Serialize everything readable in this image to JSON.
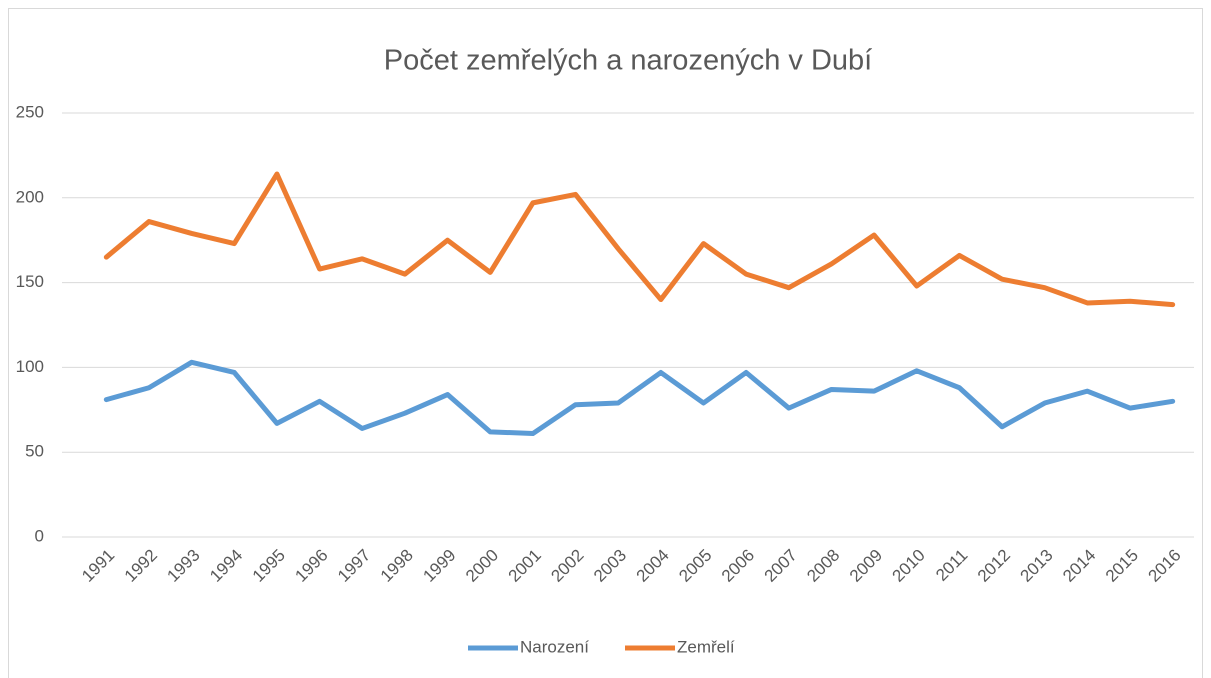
{
  "chart_data": {
    "type": "line",
    "title": "Počet zemřelých a narozených v Dubí",
    "categories": [
      "1991",
      "1992",
      "1993",
      "1994",
      "1995",
      "1996",
      "1997",
      "1998",
      "1999",
      "2000",
      "2001",
      "2002",
      "2003",
      "2004",
      "2005",
      "2006",
      "2007",
      "2008",
      "2009",
      "2010",
      "2011",
      "2012",
      "2013",
      "2014",
      "2015",
      "2016"
    ],
    "series": [
      {
        "name": "Narození",
        "color": "#5b9bd5",
        "values": [
          81,
          88,
          103,
          97,
          67,
          80,
          64,
          73,
          84,
          62,
          61,
          78,
          79,
          97,
          79,
          97,
          76,
          87,
          86,
          98,
          88,
          65,
          79,
          86,
          76,
          80
        ]
      },
      {
        "name": "Zemřelí",
        "color": "#ed7d31",
        "values": [
          165,
          186,
          179,
          173,
          214,
          158,
          164,
          155,
          175,
          156,
          197,
          202,
          170,
          140,
          173,
          155,
          147,
          161,
          178,
          148,
          166,
          152,
          147,
          138,
          139,
          137
        ]
      }
    ],
    "ylim": [
      0,
      250
    ],
    "yticks": [
      0,
      50,
      100,
      150,
      200,
      250
    ],
    "grid": true,
    "legend": "bottom"
  }
}
